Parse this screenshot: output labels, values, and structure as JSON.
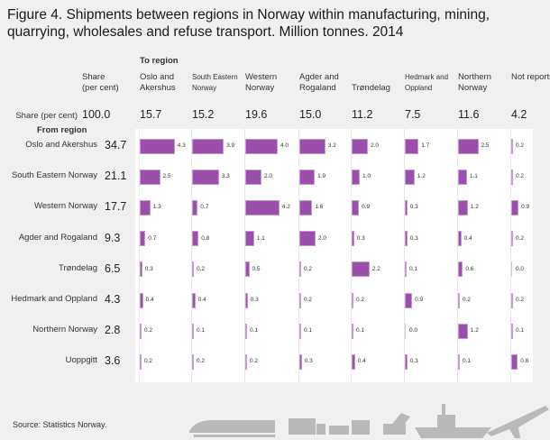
{
  "chart_data": {
    "type": "table",
    "title": "Figure 4. Shipments between regions in Norway within manufacturing, mining, quarrying, wholesales and refuse transport. Million tonnes. 2014",
    "to_region_label": "To region",
    "from_region_label": "From region",
    "share_header": "Share (per cent)",
    "share_column_header": "Share\n(per cent)",
    "columns": [
      "Oslo and Akershus",
      "South Eastern Norway",
      "Western Norway",
      "Agder and Rogaland",
      "Trøndelag",
      "Hedmark and Oppland",
      "Northern Norway",
      "Not reported"
    ],
    "total_share": "100.0",
    "column_shares": [
      "15.7",
      "15.2",
      "19.6",
      "15.0",
      "11.2",
      "7.5",
      "11.6",
      "4.2"
    ],
    "rows": [
      {
        "name": "Oslo and Akershus",
        "share": "34.7",
        "values": [
          4.3,
          3.9,
          4.0,
          3.2,
          2.0,
          1.7,
          2.5,
          0.2
        ]
      },
      {
        "name": "South Eastern Norway",
        "share": "21.1",
        "values": [
          2.5,
          3.3,
          2.0,
          1.9,
          1.0,
          1.2,
          1.1,
          0.2
        ]
      },
      {
        "name": "Western Norway",
        "share": "17.7",
        "values": [
          1.3,
          0.7,
          4.2,
          1.6,
          0.9,
          0.3,
          1.2,
          0.9
        ]
      },
      {
        "name": "Agder and Rogaland",
        "share": "9.3",
        "values": [
          0.7,
          0.8,
          1.1,
          2.0,
          0.3,
          0.3,
          0.4,
          0.2
        ]
      },
      {
        "name": "Trøndelag",
        "share": "6.5",
        "values": [
          0.3,
          0.2,
          0.5,
          0.2,
          2.2,
          0.1,
          0.6,
          0.0
        ]
      },
      {
        "name": "Hedmark and Oppland",
        "share": "4.3",
        "values": [
          0.4,
          0.4,
          0.3,
          0.2,
          0.2,
          0.9,
          0.2,
          0.2
        ]
      },
      {
        "name": "Northern Norway",
        "share": "2.8",
        "values": [
          0.2,
          0.1,
          0.1,
          0.1,
          0.1,
          0.0,
          1.2,
          0.1
        ]
      },
      {
        "name": "Uoppgitt",
        "share": "3.6",
        "values": [
          0.2,
          0.2,
          0.2,
          0.3,
          0.4,
          0.3,
          0.1,
          0.8
        ]
      }
    ],
    "bar_color": "#9a50ab"
  },
  "source": "Source: Statistics Norway.",
  "footer_icons": [
    "train-icon",
    "truck-icon",
    "excavator-icon",
    "ship-icon",
    "airplane-icon"
  ]
}
